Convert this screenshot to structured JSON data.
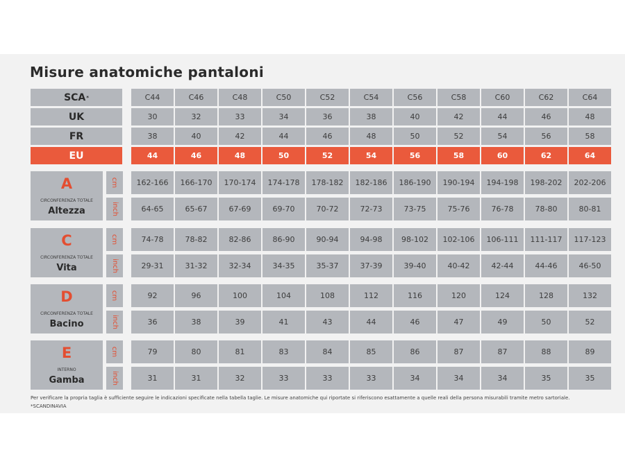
{
  "title": "Misure anatomiche pantaloni",
  "size_rows": [
    {
      "label": "SCA",
      "sup": "*",
      "values": [
        "C44",
        "C46",
        "C48",
        "C50",
        "C52",
        "C54",
        "C56",
        "C58",
        "C60",
        "C62",
        "C64"
      ]
    },
    {
      "label": "UK",
      "sup": "",
      "values": [
        "30",
        "32",
        "33",
        "34",
        "36",
        "38",
        "40",
        "42",
        "44",
        "46",
        "48"
      ]
    },
    {
      "label": "FR",
      "sup": "",
      "values": [
        "38",
        "40",
        "42",
        "44",
        "46",
        "48",
        "50",
        "52",
        "54",
        "56",
        "58"
      ]
    },
    {
      "label": "EU",
      "sup": "",
      "values": [
        "44",
        "46",
        "48",
        "50",
        "52",
        "54",
        "56",
        "58",
        "60",
        "62",
        "64"
      ]
    }
  ],
  "measures": [
    {
      "letter": "A",
      "category": "CIRCONFERENZA TOTALE",
      "name": "Altezza",
      "cm": [
        "162-166",
        "166-170",
        "170-174",
        "174-178",
        "178-182",
        "182-186",
        "186-190",
        "190-194",
        "194-198",
        "198-202",
        "202-206"
      ],
      "inch": [
        "64-65",
        "65-67",
        "67-69",
        "69-70",
        "70-72",
        "72-73",
        "73-75",
        "75-76",
        "76-78",
        "78-80",
        "80-81"
      ]
    },
    {
      "letter": "C",
      "category": "CIRCONFERENZA TOTALE",
      "name": "Vita",
      "cm": [
        "74-78",
        "78-82",
        "82-86",
        "86-90",
        "90-94",
        "94-98",
        "98-102",
        "102-106",
        "106-111",
        "111-117",
        "117-123"
      ],
      "inch": [
        "29-31",
        "31-32",
        "32-34",
        "34-35",
        "35-37",
        "37-39",
        "39-40",
        "40-42",
        "42-44",
        "44-46",
        "46-50"
      ]
    },
    {
      "letter": "D",
      "category": "CIRCONFERENZA TOTALE",
      "name": "Bacino",
      "cm": [
        "92",
        "96",
        "100",
        "104",
        "108",
        "112",
        "116",
        "120",
        "124",
        "128",
        "132"
      ],
      "inch": [
        "36",
        "38",
        "39",
        "41",
        "43",
        "44",
        "46",
        "47",
        "49",
        "50",
        "52"
      ]
    },
    {
      "letter": "E",
      "category": "INTERNO",
      "name": "Gamba",
      "cm": [
        "79",
        "80",
        "81",
        "83",
        "84",
        "85",
        "86",
        "87",
        "87",
        "88",
        "89"
      ],
      "inch": [
        "31",
        "31",
        "32",
        "33",
        "33",
        "33",
        "34",
        "34",
        "34",
        "35",
        "35"
      ]
    }
  ],
  "units": {
    "cm": "cm",
    "inch": "inch"
  },
  "footnote": "Per verificare la propria taglia è sufficiente seguire le indicazioni specificate nella tabella taglie. Le misure anatomiche qui riportate si riferiscono esattamente a quelle reali della persona misurabili tramite metro sartoriale.",
  "footnote2": "*SCANDINAVIA",
  "colors": {
    "accent": "#ea5a3c",
    "cell": "#b4b7bc",
    "background": "#f2f2f2"
  }
}
